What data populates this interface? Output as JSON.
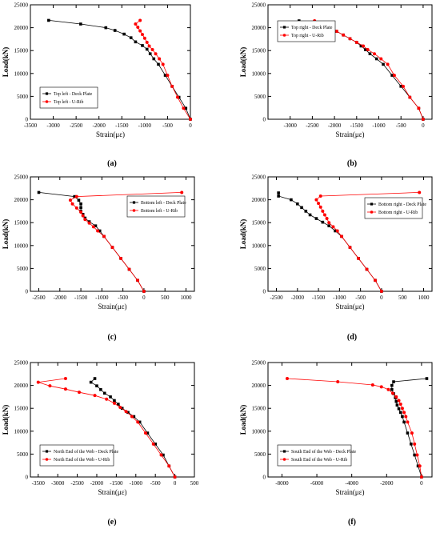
{
  "chart_data": [
    {
      "type": "line",
      "panel_label": "(a)",
      "xlabel": "Strain(με)",
      "ylabel": "Load(kN)",
      "xlim": [
        -3500,
        0
      ],
      "ylim": [
        0,
        25000
      ],
      "xticks": [
        -3500,
        -3000,
        -2500,
        -2000,
        -1500,
        -1000,
        -500,
        0
      ],
      "yticks": [
        0,
        5000,
        10000,
        15000,
        20000,
        25000
      ],
      "legend_position": "lower-left",
      "series": [
        {
          "name": "Top left - Deck Plate",
          "color": "#000000",
          "marker": "square",
          "points": [
            [
              0,
              0
            ],
            [
              -100,
              2400
            ],
            [
              -250,
              4800
            ],
            [
              -400,
              7200
            ],
            [
              -550,
              9600
            ],
            [
              -700,
              12000
            ],
            [
              -800,
              13200
            ],
            [
              -880,
              14300
            ],
            [
              -950,
              15300
            ],
            [
              -1050,
              16100
            ],
            [
              -1200,
              16900
            ],
            [
              -1300,
              17800
            ],
            [
              -1450,
              18600
            ],
            [
              -1650,
              19400
            ],
            [
              -1850,
              20000
            ],
            [
              -2400,
              20800
            ],
            [
              -3100,
              21600
            ]
          ]
        },
        {
          "name": "Top left - U-Rib",
          "color": "#ff0000",
          "marker": "circle",
          "points": [
            [
              0,
              0
            ],
            [
              -150,
              2400
            ],
            [
              -280,
              4800
            ],
            [
              -400,
              7200
            ],
            [
              -500,
              9600
            ],
            [
              -600,
              12000
            ],
            [
              -680,
              13200
            ],
            [
              -760,
              14300
            ],
            [
              -830,
              15200
            ],
            [
              -900,
              16000
            ],
            [
              -950,
              16800
            ],
            [
              -1000,
              17700
            ],
            [
              -1050,
              18500
            ],
            [
              -1100,
              19300
            ],
            [
              -1150,
              20100
            ],
            [
              -1200,
              20800
            ],
            [
              -1100,
              21600
            ]
          ]
        }
      ]
    },
    {
      "type": "line",
      "panel_label": "(b)",
      "xlabel": "Strain(με)",
      "ylabel": "Load(kN)",
      "xlim": [
        -3500,
        200
      ],
      "ylim": [
        0,
        25000
      ],
      "xticks": [
        -3000,
        -2500,
        -2000,
        -1500,
        -1000,
        -500,
        0
      ],
      "yticks": [
        0,
        5000,
        10000,
        15000,
        20000,
        25000
      ],
      "legend_position": "upper-left",
      "series": [
        {
          "name": "Top right - Deck Plate",
          "color": "#000000",
          "marker": "square",
          "points": [
            [
              0,
              0
            ],
            [
              -100,
              2400
            ],
            [
              -300,
              4800
            ],
            [
              -500,
              7200
            ],
            [
              -700,
              9600
            ],
            [
              -900,
              12000
            ],
            [
              -1050,
              13200
            ],
            [
              -1200,
              14300
            ],
            [
              -1300,
              15200
            ],
            [
              -1400,
              16000
            ],
            [
              -1500,
              16800
            ],
            [
              -1650,
              17600
            ],
            [
              -1800,
              18400
            ],
            [
              -1950,
              19200
            ],
            [
              -2100,
              20000
            ],
            [
              -2300,
              20700
            ],
            [
              -2800,
              21500
            ]
          ]
        },
        {
          "name": "Top right - U-Rib",
          "color": "#ff0000",
          "marker": "circle",
          "points": [
            [
              0,
              0
            ],
            [
              -100,
              2400
            ],
            [
              -300,
              4800
            ],
            [
              -450,
              7200
            ],
            [
              -650,
              9600
            ],
            [
              -800,
              12000
            ],
            [
              -950,
              13200
            ],
            [
              -1100,
              14300
            ],
            [
              -1250,
              15200
            ],
            [
              -1350,
              16000
            ],
            [
              -1500,
              16800
            ],
            [
              -1650,
              17600
            ],
            [
              -1800,
              18400
            ],
            [
              -1950,
              19200
            ],
            [
              -2150,
              20000
            ],
            [
              -2400,
              20700
            ],
            [
              -2450,
              21500
            ]
          ]
        }
      ]
    },
    {
      "type": "line",
      "panel_label": "(c)",
      "xlabel": "Strain(με)",
      "ylabel": "Load(kN)",
      "xlim": [
        -2700,
        1200
      ],
      "ylim": [
        0,
        25000
      ],
      "xticks": [
        -2500,
        -2000,
        -1500,
        -1000,
        -500,
        0,
        500,
        1000
      ],
      "yticks": [
        0,
        5000,
        10000,
        15000,
        20000,
        25000
      ],
      "legend_position": "upper-right",
      "series": [
        {
          "name": "Bottom left - Deck Plate",
          "color": "#000000",
          "marker": "square",
          "points": [
            [
              0,
              0
            ],
            [
              -150,
              2400
            ],
            [
              -350,
              4800
            ],
            [
              -550,
              7200
            ],
            [
              -750,
              9600
            ],
            [
              -950,
              12000
            ],
            [
              -1050,
              13200
            ],
            [
              -1150,
              14300
            ],
            [
              -1300,
              15200
            ],
            [
              -1400,
              16000
            ],
            [
              -1450,
              16800
            ],
            [
              -1500,
              17500
            ],
            [
              -1500,
              18300
            ],
            [
              -1500,
              19100
            ],
            [
              -1550,
              19900
            ],
            [
              -1650,
              20700
            ],
            [
              -2500,
              21600
            ]
          ]
        },
        {
          "name": "Bottom left - U-Rib",
          "color": "#ff0000",
          "marker": "circle",
          "points": [
            [
              0,
              0
            ],
            [
              -150,
              2400
            ],
            [
              -350,
              4800
            ],
            [
              -550,
              7200
            ],
            [
              -750,
              9600
            ],
            [
              -950,
              12000
            ],
            [
              -1100,
              13200
            ],
            [
              -1200,
              14100
            ],
            [
              -1300,
              14900
            ],
            [
              -1400,
              15700
            ],
            [
              -1450,
              16500
            ],
            [
              -1500,
              17300
            ],
            [
              -1600,
              18200
            ],
            [
              -1700,
              19100
            ],
            [
              -1750,
              19900
            ],
            [
              -1600,
              20700
            ],
            [
              900,
              21600
            ]
          ]
        }
      ]
    },
    {
      "type": "line",
      "panel_label": "(d)",
      "xlabel": "Strain(με)",
      "ylabel": "Load(kN)",
      "xlim": [
        -2700,
        1200
      ],
      "ylim": [
        0,
        25000
      ],
      "xticks": [
        -2500,
        -2000,
        -1500,
        -1000,
        -500,
        0,
        500,
        1000
      ],
      "yticks": [
        0,
        5000,
        10000,
        15000,
        20000,
        25000
      ],
      "legend_position": "right",
      "series": [
        {
          "name": "Bottom right - Deck Plate",
          "color": "#000000",
          "marker": "square",
          "points": [
            [
              0,
              0
            ],
            [
              -150,
              2400
            ],
            [
              -350,
              4800
            ],
            [
              -550,
              7200
            ],
            [
              -750,
              9600
            ],
            [
              -950,
              12000
            ],
            [
              -1100,
              13200
            ],
            [
              -1250,
              14300
            ],
            [
              -1400,
              15100
            ],
            [
              -1550,
              15900
            ],
            [
              -1700,
              16700
            ],
            [
              -1800,
              17500
            ],
            [
              -1900,
              18300
            ],
            [
              -2000,
              19100
            ],
            [
              -2150,
              20000
            ],
            [
              -2450,
              20800
            ],
            [
              -2450,
              21500
            ]
          ]
        },
        {
          "name": "Bottom right - U-Rib",
          "color": "#ff0000",
          "marker": "circle",
          "points": [
            [
              0,
              0
            ],
            [
              -150,
              2400
            ],
            [
              -350,
              4800
            ],
            [
              -550,
              7200
            ],
            [
              -750,
              9600
            ],
            [
              -950,
              12000
            ],
            [
              -1050,
              13200
            ],
            [
              -1150,
              14100
            ],
            [
              -1250,
              15000
            ],
            [
              -1300,
              15900
            ],
            [
              -1350,
              16700
            ],
            [
              -1400,
              17500
            ],
            [
              -1450,
              18400
            ],
            [
              -1500,
              19200
            ],
            [
              -1550,
              20000
            ],
            [
              -1450,
              20800
            ],
            [
              900,
              21600
            ]
          ]
        }
      ]
    },
    {
      "type": "line",
      "panel_label": "(e)",
      "xlabel": "Strain(με)",
      "ylabel": "Load(kN)",
      "xlim": [
        -3700,
        500
      ],
      "ylim": [
        0,
        25000
      ],
      "xticks": [
        -3500,
        -3000,
        -2500,
        -2000,
        -1500,
        -1000,
        -500,
        0,
        500
      ],
      "yticks": [
        0,
        5000,
        10000,
        15000,
        20000,
        25000
      ],
      "legend_position": "lower-left",
      "series": [
        {
          "name": "North End of the Web - Deck Plate",
          "color": "#000000",
          "marker": "square",
          "points": [
            [
              0,
              0
            ],
            [
              -150,
              2400
            ],
            [
              -300,
              4800
            ],
            [
              -500,
              7200
            ],
            [
              -700,
              9600
            ],
            [
              -900,
              12000
            ],
            [
              -1050,
              13200
            ],
            [
              -1200,
              14100
            ],
            [
              -1350,
              15000
            ],
            [
              -1450,
              15900
            ],
            [
              -1550,
              16700
            ],
            [
              -1650,
              17500
            ],
            [
              -1800,
              18300
            ],
            [
              -1900,
              19100
            ],
            [
              -2000,
              19900
            ],
            [
              -2150,
              20700
            ],
            [
              -2050,
              21500
            ]
          ]
        },
        {
          "name": "North End of the Web - U-Rib",
          "color": "#ff0000",
          "marker": "circle",
          "points": [
            [
              0,
              0
            ],
            [
              -150,
              2400
            ],
            [
              -350,
              4800
            ],
            [
              -550,
              7200
            ],
            [
              -750,
              9600
            ],
            [
              -950,
              12000
            ],
            [
              -1100,
              13200
            ],
            [
              -1250,
              14300
            ],
            [
              -1400,
              15200
            ],
            [
              -1550,
              16100
            ],
            [
              -1750,
              17000
            ],
            [
              -2050,
              17800
            ],
            [
              -2450,
              18500
            ],
            [
              -2800,
              19200
            ],
            [
              -3200,
              19900
            ],
            [
              -3500,
              20700
            ],
            [
              -2800,
              21500
            ]
          ]
        }
      ]
    },
    {
      "type": "line",
      "panel_label": "(f)",
      "xlabel": "Strain(με)",
      "ylabel": "Load(kN)",
      "xlim": [
        -8800,
        600
      ],
      "ylim": [
        0,
        25000
      ],
      "xticks": [
        -8000,
        -6000,
        -4000,
        -2000,
        0
      ],
      "yticks": [
        0,
        5000,
        10000,
        15000,
        20000,
        25000
      ],
      "legend_position": "lower-left",
      "series": [
        {
          "name": "South End of the Web - Deck Plate",
          "color": "#000000",
          "marker": "square",
          "points": [
            [
              0,
              0
            ],
            [
              -200,
              2400
            ],
            [
              -400,
              4800
            ],
            [
              -600,
              7200
            ],
            [
              -800,
              9600
            ],
            [
              -1000,
              12000
            ],
            [
              -1100,
              13200
            ],
            [
              -1200,
              14100
            ],
            [
              -1300,
              14900
            ],
            [
              -1400,
              15700
            ],
            [
              -1450,
              16500
            ],
            [
              -1500,
              17300
            ],
            [
              -1600,
              18200
            ],
            [
              -1700,
              19100
            ],
            [
              -1700,
              20000
            ],
            [
              -1600,
              20800
            ],
            [
              300,
              21500
            ]
          ]
        },
        {
          "name": "South End of the Web - U-Rib",
          "color": "#ff0000",
          "marker": "circle",
          "points": [
            [
              0,
              0
            ],
            [
              -100,
              2400
            ],
            [
              -250,
              4800
            ],
            [
              -400,
              7200
            ],
            [
              -550,
              9600
            ],
            [
              -800,
              12000
            ],
            [
              -900,
              13200
            ],
            [
              -1000,
              14100
            ],
            [
              -1100,
              15000
            ],
            [
              -1200,
              15900
            ],
            [
              -1300,
              16700
            ],
            [
              -1450,
              17500
            ],
            [
              -1650,
              18300
            ],
            [
              -1900,
              19100
            ],
            [
              -2300,
              19700
            ],
            [
              -2800,
              20100
            ],
            [
              -4800,
              20800
            ],
            [
              -7700,
              21500
            ]
          ]
        }
      ]
    }
  ]
}
